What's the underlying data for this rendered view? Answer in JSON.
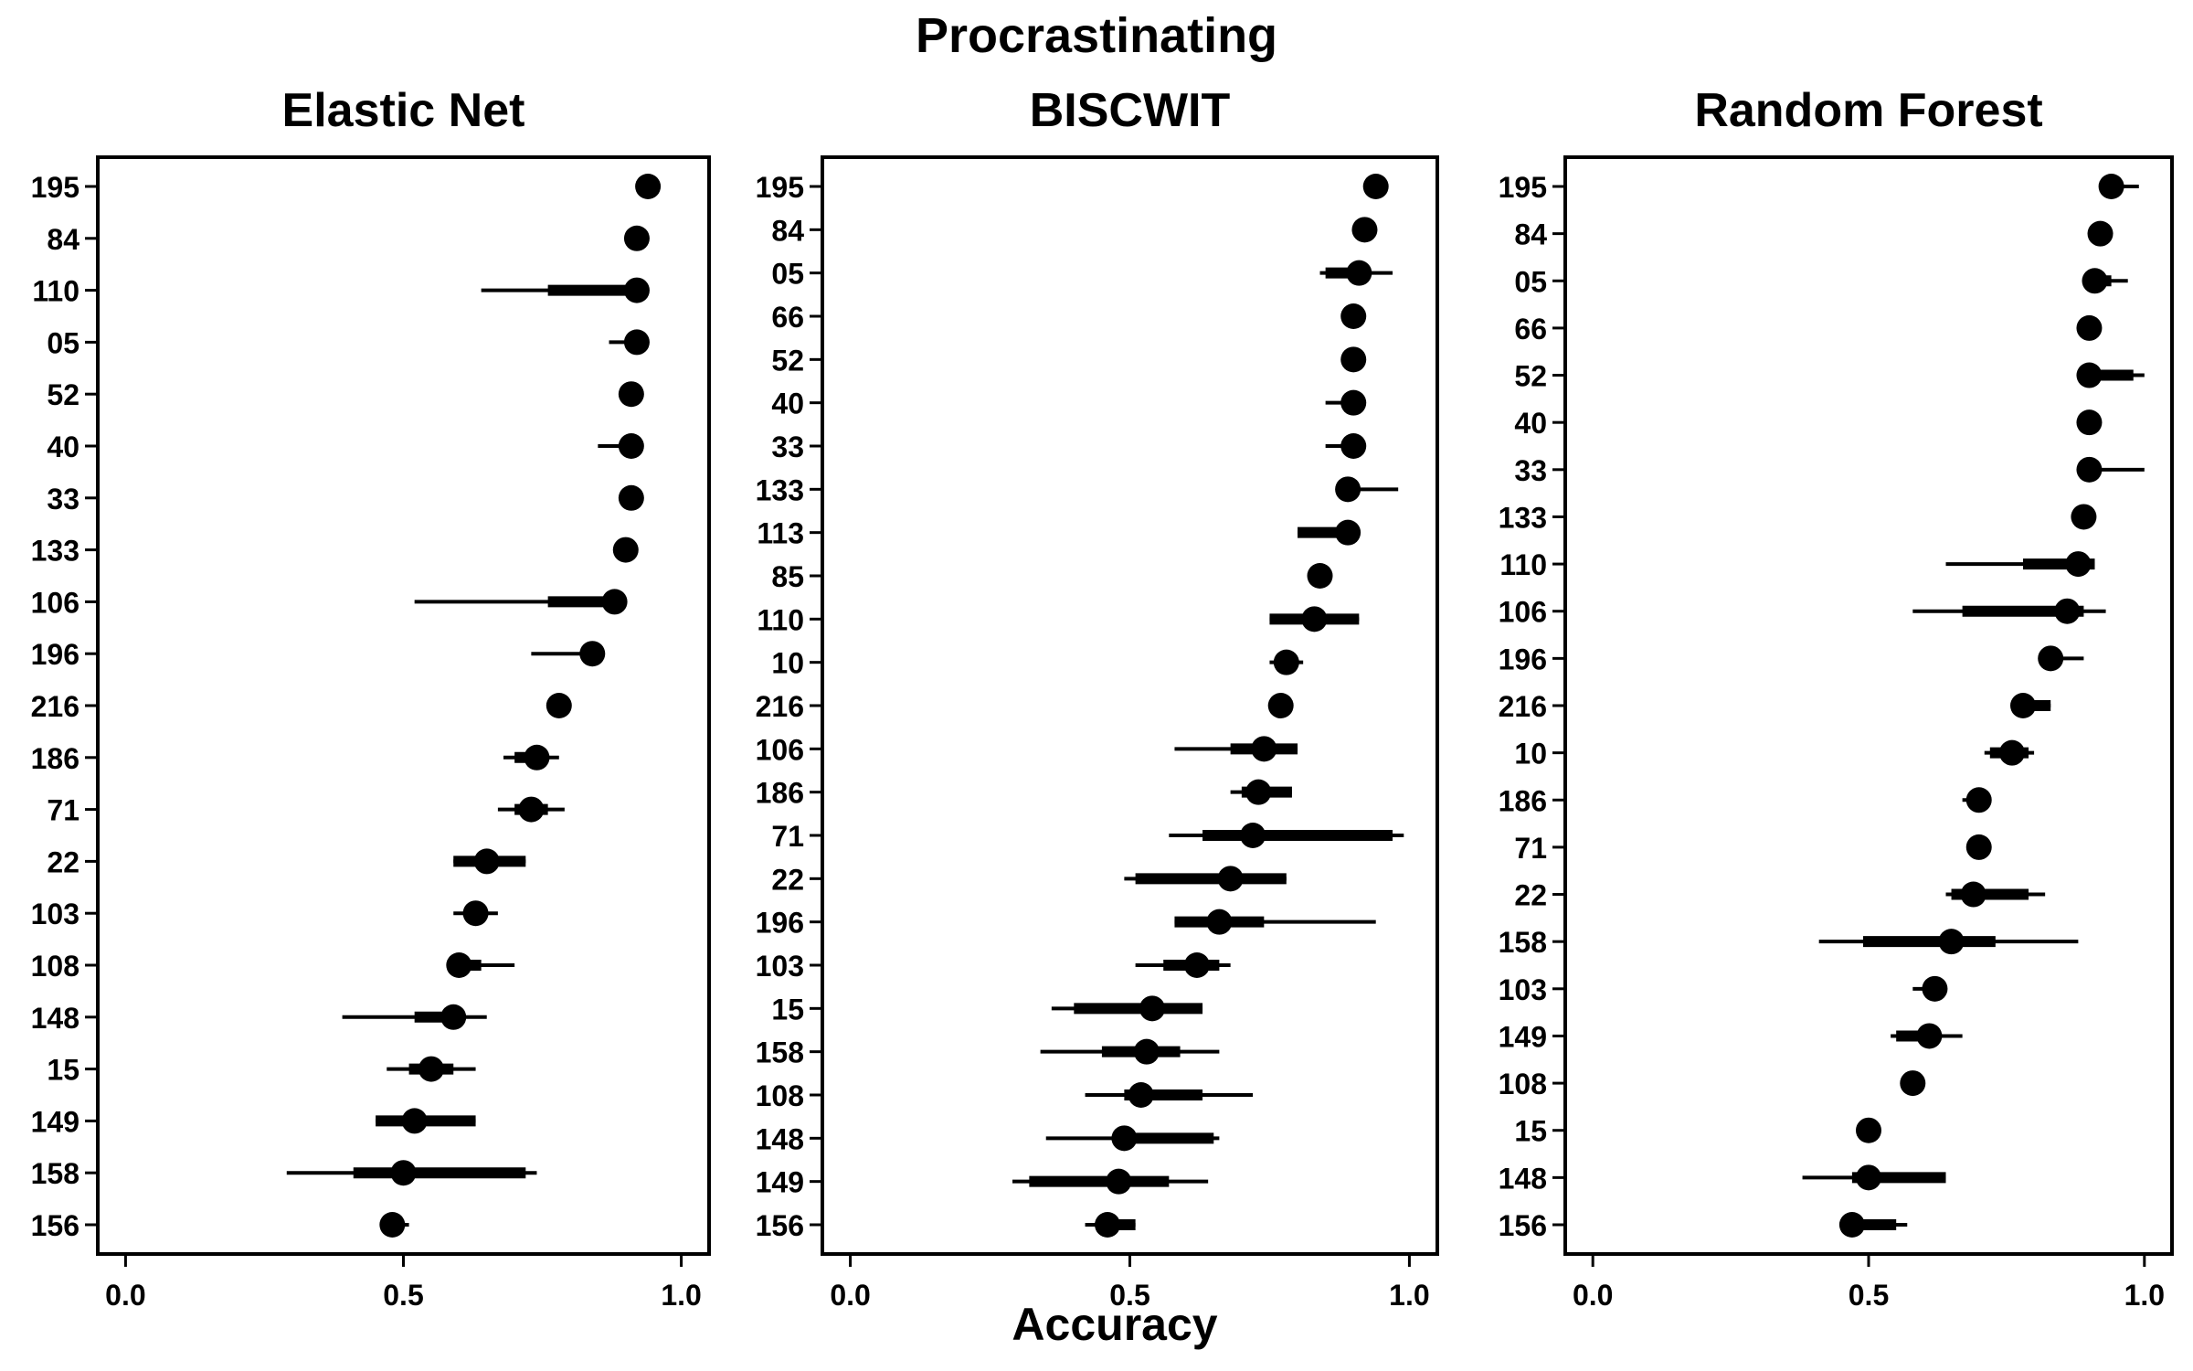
{
  "figure": {
    "title": "Procrastinating",
    "xlabel": "Accuracy"
  },
  "chart_data": [
    {
      "type": "scatter",
      "title": "Elastic Net",
      "xlim": [
        -0.05,
        1.05
      ],
      "xticks": [
        "0.0",
        "0.5",
        "1.0"
      ],
      "grid": false,
      "rows": [
        {
          "label": "195",
          "value": 0.94,
          "ci95": [
            0.94,
            0.94
          ],
          "ci50": [
            0.94,
            0.94
          ]
        },
        {
          "label": "84",
          "value": 0.92,
          "ci95": [
            0.92,
            0.92
          ],
          "ci50": [
            0.92,
            0.92
          ]
        },
        {
          "label": "110",
          "value": 0.92,
          "ci95": [
            0.64,
            0.94
          ],
          "ci50": [
            0.76,
            0.94
          ]
        },
        {
          "label": "05",
          "value": 0.92,
          "ci95": [
            0.87,
            0.93
          ],
          "ci50": [
            0.9,
            0.93
          ]
        },
        {
          "label": "52",
          "value": 0.91,
          "ci95": [
            0.91,
            0.91
          ],
          "ci50": [
            0.91,
            0.91
          ]
        },
        {
          "label": "40",
          "value": 0.91,
          "ci95": [
            0.85,
            0.91
          ],
          "ci50": [
            0.9,
            0.91
          ]
        },
        {
          "label": "33",
          "value": 0.91,
          "ci95": [
            0.91,
            0.91
          ],
          "ci50": [
            0.91,
            0.91
          ]
        },
        {
          "label": "133",
          "value": 0.9,
          "ci95": [
            0.9,
            0.9
          ],
          "ci50": [
            0.9,
            0.9
          ]
        },
        {
          "label": "106",
          "value": 0.88,
          "ci95": [
            0.52,
            0.89
          ],
          "ci50": [
            0.76,
            0.89
          ]
        },
        {
          "label": "196",
          "value": 0.84,
          "ci95": [
            0.73,
            0.84
          ],
          "ci50": [
            0.82,
            0.84
          ]
        },
        {
          "label": "216",
          "value": 0.78,
          "ci95": [
            0.78,
            0.78
          ],
          "ci50": [
            0.78,
            0.78
          ]
        },
        {
          "label": "186",
          "value": 0.74,
          "ci95": [
            0.68,
            0.78
          ],
          "ci50": [
            0.7,
            0.76
          ]
        },
        {
          "label": "71",
          "value": 0.73,
          "ci95": [
            0.67,
            0.79
          ],
          "ci50": [
            0.7,
            0.76
          ]
        },
        {
          "label": "22",
          "value": 0.65,
          "ci95": [
            0.59,
            0.72
          ],
          "ci50": [
            0.59,
            0.72
          ]
        },
        {
          "label": "103",
          "value": 0.63,
          "ci95": [
            0.59,
            0.67
          ],
          "ci50": [
            0.61,
            0.65
          ]
        },
        {
          "label": "108",
          "value": 0.6,
          "ci95": [
            0.58,
            0.7
          ],
          "ci50": [
            0.59,
            0.64
          ]
        },
        {
          "label": "148",
          "value": 0.59,
          "ci95": [
            0.39,
            0.65
          ],
          "ci50": [
            0.52,
            0.6
          ]
        },
        {
          "label": "15",
          "value": 0.55,
          "ci95": [
            0.47,
            0.63
          ],
          "ci50": [
            0.51,
            0.59
          ]
        },
        {
          "label": "149",
          "value": 0.52,
          "ci95": [
            0.45,
            0.63
          ],
          "ci50": [
            0.45,
            0.63
          ]
        },
        {
          "label": "158",
          "value": 0.5,
          "ci95": [
            0.29,
            0.74
          ],
          "ci50": [
            0.41,
            0.72
          ]
        },
        {
          "label": "156",
          "value": 0.48,
          "ci95": [
            0.48,
            0.51
          ],
          "ci50": [
            0.48,
            0.5
          ]
        }
      ]
    },
    {
      "type": "scatter",
      "title": "BISCWIT",
      "xlim": [
        -0.05,
        1.05
      ],
      "xticks": [
        "0.0",
        "0.5",
        "1.0"
      ],
      "grid": false,
      "rows": [
        {
          "label": "195",
          "value": 0.94,
          "ci95": [
            0.94,
            0.94
          ],
          "ci50": [
            0.94,
            0.94
          ]
        },
        {
          "label": "84",
          "value": 0.92,
          "ci95": [
            0.92,
            0.92
          ],
          "ci50": [
            0.92,
            0.92
          ]
        },
        {
          "label": "05",
          "value": 0.91,
          "ci95": [
            0.84,
            0.97
          ],
          "ci50": [
            0.85,
            0.92
          ]
        },
        {
          "label": "66",
          "value": 0.9,
          "ci95": [
            0.9,
            0.9
          ],
          "ci50": [
            0.9,
            0.9
          ]
        },
        {
          "label": "52",
          "value": 0.9,
          "ci95": [
            0.9,
            0.9
          ],
          "ci50": [
            0.9,
            0.9
          ]
        },
        {
          "label": "40",
          "value": 0.9,
          "ci95": [
            0.85,
            0.9
          ],
          "ci50": [
            0.88,
            0.9
          ]
        },
        {
          "label": "33",
          "value": 0.9,
          "ci95": [
            0.85,
            0.9
          ],
          "ci50": [
            0.88,
            0.9
          ]
        },
        {
          "label": "133",
          "value": 0.89,
          "ci95": [
            0.89,
            0.98
          ],
          "ci50": [
            0.89,
            0.91
          ]
        },
        {
          "label": "113",
          "value": 0.89,
          "ci95": [
            0.8,
            0.89
          ],
          "ci50": [
            0.8,
            0.89
          ]
        },
        {
          "label": "85",
          "value": 0.84,
          "ci95": [
            0.84,
            0.84
          ],
          "ci50": [
            0.84,
            0.84
          ]
        },
        {
          "label": "110",
          "value": 0.83,
          "ci95": [
            0.75,
            0.91
          ],
          "ci50": [
            0.75,
            0.91
          ]
        },
        {
          "label": "10",
          "value": 0.78,
          "ci95": [
            0.75,
            0.81
          ],
          "ci50": [
            0.76,
            0.8
          ]
        },
        {
          "label": "216",
          "value": 0.77,
          "ci95": [
            0.77,
            0.77
          ],
          "ci50": [
            0.77,
            0.77
          ]
        },
        {
          "label": "106",
          "value": 0.74,
          "ci95": [
            0.58,
            0.8
          ],
          "ci50": [
            0.68,
            0.8
          ]
        },
        {
          "label": "186",
          "value": 0.73,
          "ci95": [
            0.68,
            0.79
          ],
          "ci50": [
            0.7,
            0.79
          ]
        },
        {
          "label": "71",
          "value": 0.72,
          "ci95": [
            0.57,
            0.99
          ],
          "ci50": [
            0.63,
            0.97
          ]
        },
        {
          "label": "22",
          "value": 0.68,
          "ci95": [
            0.49,
            0.78
          ],
          "ci50": [
            0.51,
            0.78
          ]
        },
        {
          "label": "196",
          "value": 0.66,
          "ci95": [
            0.58,
            0.94
          ],
          "ci50": [
            0.58,
            0.74
          ]
        },
        {
          "label": "103",
          "value": 0.62,
          "ci95": [
            0.51,
            0.68
          ],
          "ci50": [
            0.56,
            0.66
          ]
        },
        {
          "label": "15",
          "value": 0.54,
          "ci95": [
            0.36,
            0.63
          ],
          "ci50": [
            0.4,
            0.63
          ]
        },
        {
          "label": "158",
          "value": 0.53,
          "ci95": [
            0.34,
            0.66
          ],
          "ci50": [
            0.45,
            0.59
          ]
        },
        {
          "label": "108",
          "value": 0.52,
          "ci95": [
            0.42,
            0.72
          ],
          "ci50": [
            0.49,
            0.63
          ]
        },
        {
          "label": "148",
          "value": 0.49,
          "ci95": [
            0.35,
            0.66
          ],
          "ci50": [
            0.49,
            0.65
          ]
        },
        {
          "label": "149",
          "value": 0.48,
          "ci95": [
            0.29,
            0.64
          ],
          "ci50": [
            0.32,
            0.57
          ]
        },
        {
          "label": "156",
          "value": 0.46,
          "ci95": [
            0.42,
            0.51
          ],
          "ci50": [
            0.44,
            0.51
          ]
        }
      ]
    },
    {
      "type": "scatter",
      "title": "Random Forest",
      "xlim": [
        -0.05,
        1.05
      ],
      "xticks": [
        "0.0",
        "0.5",
        "1.0"
      ],
      "grid": false,
      "rows": [
        {
          "label": "195",
          "value": 0.94,
          "ci95": [
            0.94,
            0.99
          ],
          "ci50": [
            0.94,
            0.96
          ]
        },
        {
          "label": "84",
          "value": 0.92,
          "ci95": [
            0.92,
            0.92
          ],
          "ci50": [
            0.92,
            0.92
          ]
        },
        {
          "label": "05",
          "value": 0.91,
          "ci95": [
            0.91,
            0.97
          ],
          "ci50": [
            0.91,
            0.94
          ]
        },
        {
          "label": "66",
          "value": 0.9,
          "ci95": [
            0.88,
            0.91
          ],
          "ci50": [
            0.88,
            0.91
          ]
        },
        {
          "label": "52",
          "value": 0.9,
          "ci95": [
            0.9,
            1.0
          ],
          "ci50": [
            0.9,
            0.98
          ]
        },
        {
          "label": "40",
          "value": 0.9,
          "ci95": [
            0.9,
            0.9
          ],
          "ci50": [
            0.9,
            0.9
          ]
        },
        {
          "label": "33",
          "value": 0.9,
          "ci95": [
            0.9,
            1.0
          ],
          "ci50": [
            0.9,
            0.92
          ]
        },
        {
          "label": "133",
          "value": 0.89,
          "ci95": [
            0.89,
            0.89
          ],
          "ci50": [
            0.89,
            0.89
          ]
        },
        {
          "label": "110",
          "value": 0.88,
          "ci95": [
            0.64,
            0.91
          ],
          "ci50": [
            0.78,
            0.91
          ]
        },
        {
          "label": "106",
          "value": 0.86,
          "ci95": [
            0.58,
            0.93
          ],
          "ci50": [
            0.67,
            0.89
          ]
        },
        {
          "label": "196",
          "value": 0.83,
          "ci95": [
            0.83,
            0.89
          ],
          "ci50": [
            0.83,
            0.85
          ]
        },
        {
          "label": "216",
          "value": 0.78,
          "ci95": [
            0.78,
            0.83
          ],
          "ci50": [
            0.78,
            0.83
          ]
        },
        {
          "label": "10",
          "value": 0.76,
          "ci95": [
            0.71,
            0.8
          ],
          "ci50": [
            0.72,
            0.79
          ]
        },
        {
          "label": "186",
          "value": 0.7,
          "ci95": [
            0.67,
            0.72
          ],
          "ci50": [
            0.68,
            0.71
          ]
        },
        {
          "label": "71",
          "value": 0.7,
          "ci95": [
            0.7,
            0.7
          ],
          "ci50": [
            0.7,
            0.7
          ]
        },
        {
          "label": "22",
          "value": 0.69,
          "ci95": [
            0.64,
            0.82
          ],
          "ci50": [
            0.65,
            0.79
          ]
        },
        {
          "label": "158",
          "value": 0.65,
          "ci95": [
            0.41,
            0.88
          ],
          "ci50": [
            0.49,
            0.73
          ]
        },
        {
          "label": "103",
          "value": 0.62,
          "ci95": [
            0.58,
            0.62
          ],
          "ci50": [
            0.6,
            0.62
          ]
        },
        {
          "label": "149",
          "value": 0.61,
          "ci95": [
            0.54,
            0.67
          ],
          "ci50": [
            0.55,
            0.61
          ]
        },
        {
          "label": "108",
          "value": 0.58,
          "ci95": [
            0.58,
            0.58
          ],
          "ci50": [
            0.58,
            0.58
          ]
        },
        {
          "label": "15",
          "value": 0.5,
          "ci95": [
            0.5,
            0.5
          ],
          "ci50": [
            0.5,
            0.5
          ]
        },
        {
          "label": "148",
          "value": 0.5,
          "ci95": [
            0.38,
            0.64
          ],
          "ci50": [
            0.47,
            0.64
          ]
        },
        {
          "label": "156",
          "value": 0.47,
          "ci95": [
            0.47,
            0.57
          ],
          "ci50": [
            0.47,
            0.55
          ]
        }
      ]
    }
  ]
}
